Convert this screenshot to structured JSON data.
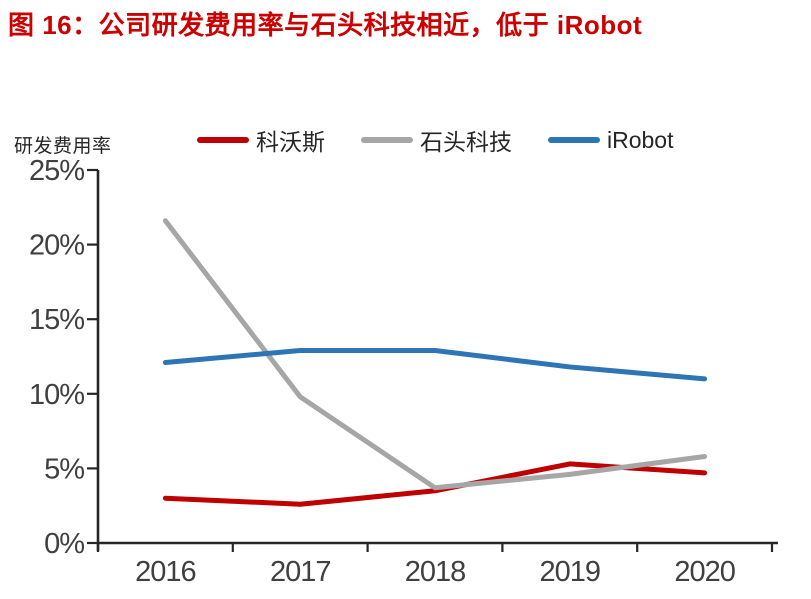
{
  "title": {
    "text": "图 16：公司研发费用率与石头科技相近，低于 iRobot",
    "color": "#CC0000"
  },
  "chart": {
    "y_axis_label": "研发费用率"
  },
  "chart_data": {
    "type": "line",
    "title": "图 16：公司研发费用率与石头科技相近，低于 iRobot",
    "categories": [
      "2016",
      "2017",
      "2018",
      "2019",
      "2020"
    ],
    "series": [
      {
        "name": "科沃斯",
        "color": "#C00000",
        "values": [
          3.0,
          2.6,
          3.5,
          5.3,
          4.7
        ]
      },
      {
        "name": "石头科技",
        "color": "#A6A6A6",
        "values": [
          21.6,
          9.8,
          3.7,
          4.6,
          5.8
        ]
      },
      {
        "name": "iRobot",
        "color": "#2E75B6",
        "values": [
          12.1,
          12.9,
          12.9,
          11.8,
          11.0
        ]
      }
    ],
    "xlabel": "",
    "ylabel": "研发费用率",
    "ylim": [
      0,
      25
    ],
    "ytick_labels": [
      "0%",
      "5%",
      "10%",
      "15%",
      "20%",
      "25%"
    ],
    "grid": false,
    "legend_position": "top-left",
    "axis_color": "#262626",
    "tick_label_color": "#404040"
  }
}
